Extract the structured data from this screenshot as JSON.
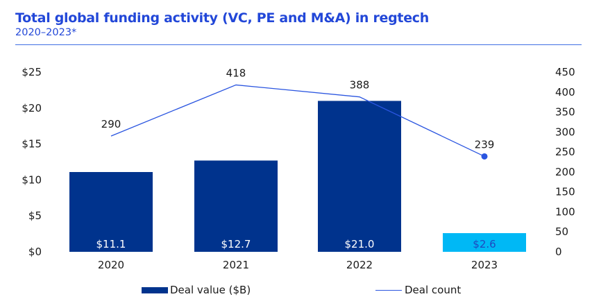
{
  "header": {
    "title": "Total global funding activity (VC, PE and M&A) in regtech",
    "subtitle": "2020–2023*"
  },
  "colors": {
    "title": "#2247d8",
    "bar": "#00338d",
    "bar_highlight": "#00b8f5",
    "bar_label": "#ffffff",
    "bar_highlight_label": "#1e49c0",
    "line": "#2a55e0",
    "rule": "#3f6ee3"
  },
  "chart_data": {
    "type": "bar",
    "title": "Total global funding activity (VC, PE and M&A) in regtech",
    "subtitle": "2020–2023*",
    "categories": [
      "2020",
      "2021",
      "2022",
      "2023"
    ],
    "series": [
      {
        "name": "Deal value ($B)",
        "type": "bar",
        "axis": "left",
        "values": [
          11.1,
          12.7,
          21.0,
          2.6
        ],
        "labels": [
          "$11.1",
          "$12.7",
          "$21.0",
          "$2.6"
        ],
        "highlight_index": 3
      },
      {
        "name": "Deal count",
        "type": "line",
        "axis": "right",
        "values": [
          290,
          418,
          388,
          239
        ],
        "labels": [
          "290",
          "418",
          "388",
          "239"
        ],
        "end_marker": true
      }
    ],
    "left_axis": {
      "ylim": [
        0,
        25
      ],
      "ticks": [
        0,
        5,
        10,
        15,
        20,
        25
      ],
      "tick_labels": [
        "$0",
        "$5",
        "$10",
        "$15",
        "$20",
        "$25"
      ]
    },
    "right_axis": {
      "ylim": [
        0,
        450
      ],
      "ticks": [
        0,
        50,
        100,
        150,
        200,
        250,
        300,
        350,
        400,
        450
      ],
      "tick_labels": [
        "0",
        "50",
        "100",
        "150",
        "200",
        "250",
        "300",
        "350",
        "400",
        "450"
      ]
    },
    "xlabel": "",
    "ylabel": "",
    "grid": false,
    "legend": {
      "position": "bottom",
      "entries": [
        "Deal value ($B)",
        "Deal count"
      ]
    }
  }
}
